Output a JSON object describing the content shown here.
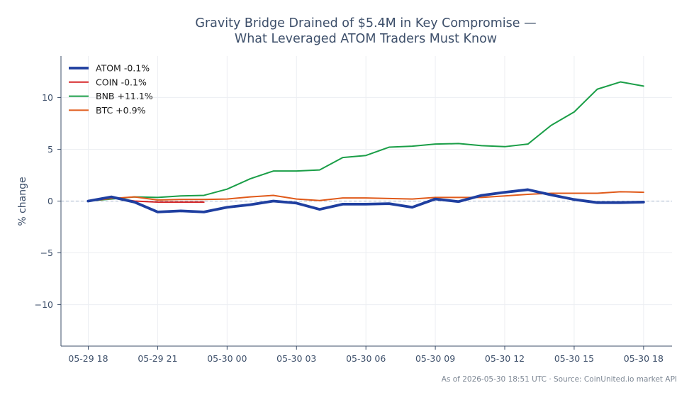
{
  "chart_data": {
    "type": "line",
    "title_line1": "Gravity Bridge Drained of $5.4M in Key Compromise —",
    "title_line2": "What Leveraged ATOM Traders Must Know",
    "ylabel": "% change",
    "xlabel": "",
    "ylim": [
      -14,
      14
    ],
    "y_ticks": [
      -10,
      -5,
      0,
      5,
      10
    ],
    "y_tick_labels": [
      "−10",
      "−5",
      "0",
      "5",
      "10"
    ],
    "x_ticks": [
      0,
      3,
      6,
      9,
      12,
      15,
      18,
      21,
      24
    ],
    "x_tick_labels": [
      "05-29 18",
      "05-29 21",
      "05-30 00",
      "05-30 03",
      "05-30 06",
      "05-30 09",
      "05-30 12",
      "05-30 15",
      "05-30 18"
    ],
    "grid": true,
    "zero_line": true,
    "legend_position": "top-left",
    "series": [
      {
        "name": "ATOM -0.1%",
        "color": "#1f3fa0",
        "x": [
          0,
          1,
          2,
          3,
          4,
          5,
          6,
          7,
          8,
          9,
          10,
          11,
          12,
          13,
          14,
          15,
          16,
          17,
          18,
          19,
          20,
          21,
          22,
          23,
          24
        ],
        "values": [
          0,
          0.4,
          -0.1,
          -1.05,
          -0.95,
          -1.05,
          -0.6,
          -0.35,
          0,
          -0.2,
          -0.8,
          -0.3,
          -0.3,
          -0.25,
          -0.6,
          0.2,
          -0.05,
          0.55,
          0.85,
          1.1,
          0.6,
          0.15,
          -0.15,
          -0.15,
          -0.1
        ]
      },
      {
        "name": "COIN -0.1%",
        "color": "#d62728",
        "x": [
          0,
          1,
          2,
          3,
          4,
          5
        ],
        "values": [
          0,
          0.35,
          0.0,
          -0.1,
          -0.1,
          -0.1
        ]
      },
      {
        "name": "BNB +11.1%",
        "color": "#1a9e47",
        "x": [
          0,
          1,
          2,
          3,
          4,
          5,
          6,
          7,
          8,
          9,
          10,
          11,
          12,
          13,
          14,
          15,
          16,
          17,
          18,
          19,
          20,
          21,
          22,
          23,
          24
        ],
        "values": [
          0,
          0.2,
          0.4,
          0.35,
          0.5,
          0.55,
          1.15,
          2.15,
          2.9,
          2.9,
          3.0,
          4.2,
          4.4,
          5.2,
          5.3,
          5.5,
          5.55,
          5.35,
          5.25,
          5.5,
          7.3,
          8.6,
          10.8,
          11.5,
          11.1
        ]
      },
      {
        "name": "BTC +0.9%",
        "color": "#e05a1a",
        "x": [
          0,
          1,
          2,
          3,
          4,
          5,
          6,
          7,
          8,
          9,
          10,
          11,
          12,
          13,
          14,
          15,
          16,
          17,
          18,
          19,
          20,
          21,
          22,
          23,
          24
        ],
        "values": [
          0,
          0.25,
          0.4,
          0.1,
          0.15,
          0.15,
          0.2,
          0.4,
          0.55,
          0.2,
          0.05,
          0.3,
          0.3,
          0.25,
          0.2,
          0.35,
          0.35,
          0.35,
          0.5,
          0.65,
          0.75,
          0.75,
          0.75,
          0.9,
          0.85
        ]
      }
    ],
    "footnote": "As of 2026-05-30 18:51 UTC · Source: CoinUnited.io market API"
  }
}
